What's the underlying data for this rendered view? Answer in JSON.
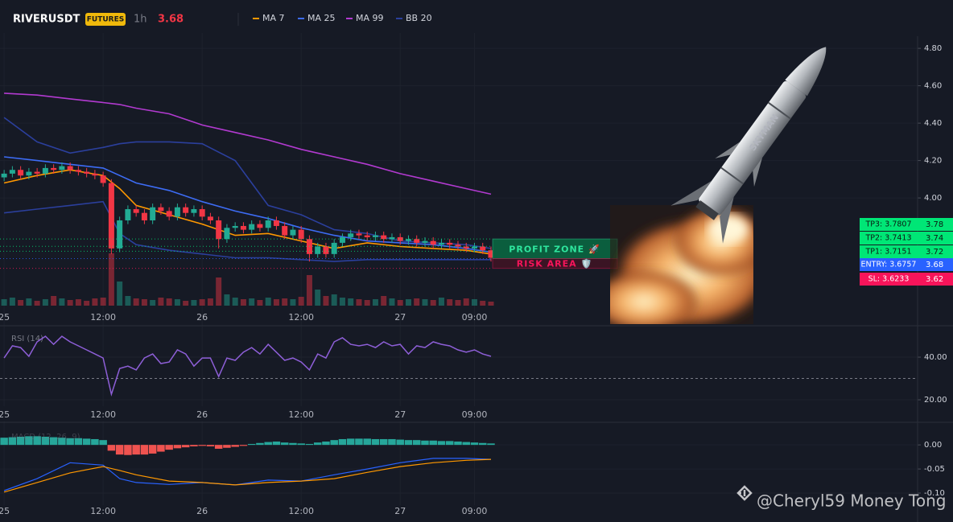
{
  "chart_data": [
    {
      "type": "candlestick",
      "title": "RIVERUSDT",
      "badge": "FUTURES",
      "interval": "1h",
      "last_price": 3.68,
      "x": [
        0,
        1,
        2,
        3,
        4,
        5,
        6,
        7,
        8,
        9,
        10,
        11,
        12,
        13,
        14,
        15,
        16,
        17,
        18,
        19,
        20,
        21,
        22,
        23,
        24,
        25,
        26,
        27,
        28,
        29,
        30,
        31,
        32,
        33,
        34,
        35,
        36,
        37,
        38,
        39,
        40,
        41,
        42,
        43,
        44,
        45,
        46,
        47,
        48,
        49,
        50,
        51,
        52,
        53,
        54,
        55,
        56,
        57,
        58,
        59
      ],
      "xlim": [
        -0.5,
        110.7
      ],
      "xticks": [
        {
          "value": 0,
          "label": "25"
        },
        {
          "value": 12,
          "label": "12:00"
        },
        {
          "value": 24,
          "label": "26"
        },
        {
          "value": 36,
          "label": "12:00"
        },
        {
          "value": 48,
          "label": "27"
        },
        {
          "value": 57,
          "label": "09:00"
        }
      ],
      "ylim": [
        3.338,
        4.865
      ],
      "yticks": [
        {
          "value": 4.8,
          "label": "4.80"
        },
        {
          "value": 4.6,
          "label": "4.60"
        },
        {
          "value": 4.4,
          "label": "4.40"
        },
        {
          "value": 4.2,
          "label": "4.20"
        },
        {
          "value": 4.0,
          "label": "4.00"
        }
      ],
      "open": [
        4.11,
        4.13,
        4.15,
        4.12,
        4.14,
        4.13,
        4.16,
        4.15,
        4.17,
        4.15,
        4.14,
        4.13,
        4.12,
        4.08,
        3.73,
        3.88,
        3.94,
        3.92,
        3.88,
        3.95,
        3.93,
        3.9,
        3.95,
        3.92,
        3.94,
        3.9,
        3.88,
        3.78,
        3.84,
        3.85,
        3.83,
        3.86,
        3.84,
        3.88,
        3.85,
        3.8,
        3.83,
        3.78,
        3.7,
        3.74,
        3.7,
        3.76,
        3.79,
        3.81,
        3.8,
        3.79,
        3.8,
        3.78,
        3.79,
        3.77,
        3.78,
        3.76,
        3.77,
        3.75,
        3.76,
        3.75,
        3.74,
        3.73,
        3.74,
        3.72
      ],
      "high": [
        4.15,
        4.17,
        4.17,
        4.16,
        4.16,
        4.18,
        4.18,
        4.19,
        4.19,
        4.17,
        4.16,
        4.15,
        4.14,
        4.1,
        3.9,
        3.96,
        3.96,
        3.94,
        3.97,
        3.97,
        3.95,
        3.97,
        3.97,
        3.96,
        3.96,
        3.92,
        3.9,
        3.86,
        3.87,
        3.87,
        3.88,
        3.88,
        3.9,
        3.9,
        3.87,
        3.85,
        3.85,
        3.8,
        3.76,
        3.76,
        3.78,
        3.81,
        3.83,
        3.83,
        3.82,
        3.82,
        3.82,
        3.81,
        3.81,
        3.8,
        3.8,
        3.79,
        3.79,
        3.78,
        3.78,
        3.77,
        3.76,
        3.76,
        3.76,
        3.74
      ],
      "low": [
        4.09,
        4.11,
        4.1,
        4.1,
        4.11,
        4.11,
        4.13,
        4.13,
        4.13,
        4.12,
        4.11,
        4.1,
        4.06,
        3.7,
        3.71,
        3.86,
        3.9,
        3.86,
        3.86,
        3.91,
        3.88,
        3.88,
        3.9,
        3.9,
        3.88,
        3.86,
        3.73,
        3.76,
        3.82,
        3.81,
        3.81,
        3.82,
        3.82,
        3.83,
        3.78,
        3.78,
        3.76,
        3.66,
        3.68,
        3.68,
        3.68,
        3.74,
        3.77,
        3.78,
        3.77,
        3.77,
        3.76,
        3.76,
        3.75,
        3.75,
        3.74,
        3.74,
        3.73,
        3.73,
        3.73,
        3.72,
        3.71,
        3.71,
        3.7,
        3.66
      ],
      "close": [
        4.13,
        4.15,
        4.12,
        4.14,
        4.13,
        4.16,
        4.15,
        4.17,
        4.15,
        4.14,
        4.13,
        4.12,
        4.08,
        3.73,
        3.88,
        3.94,
        3.92,
        3.88,
        3.95,
        3.93,
        3.9,
        3.95,
        3.92,
        3.94,
        3.9,
        3.88,
        3.78,
        3.84,
        3.85,
        3.83,
        3.86,
        3.84,
        3.88,
        3.85,
        3.8,
        3.83,
        3.78,
        3.7,
        3.74,
        3.7,
        3.76,
        3.79,
        3.81,
        3.8,
        3.79,
        3.8,
        3.78,
        3.79,
        3.77,
        3.78,
        3.76,
        3.77,
        3.75,
        3.76,
        3.75,
        3.74,
        3.73,
        3.74,
        3.72,
        3.68
      ],
      "volume": [
        8,
        10,
        7,
        9,
        6,
        8,
        12,
        9,
        7,
        8,
        6,
        9,
        10,
        65,
        30,
        12,
        9,
        8,
        7,
        10,
        9,
        8,
        6,
        7,
        8,
        9,
        35,
        14,
        10,
        8,
        9,
        7,
        10,
        8,
        9,
        8,
        11,
        38,
        20,
        12,
        14,
        10,
        9,
        8,
        7,
        8,
        12,
        9,
        7,
        8,
        9,
        8,
        7,
        10,
        8,
        7,
        9,
        8,
        6,
        5
      ],
      "volume_lim": [
        0,
        100
      ],
      "up_color": "#22ab94",
      "down_color": "#f23645",
      "series": [
        {
          "name": "MA 7",
          "color": "#ff9800",
          "x": [
            0,
            4,
            8,
            12,
            14,
            16,
            20,
            24,
            28,
            32,
            36,
            40,
            44,
            48,
            52,
            56,
            59
          ],
          "values": [
            4.08,
            4.12,
            4.15,
            4.12,
            4.05,
            3.96,
            3.91,
            3.86,
            3.8,
            3.81,
            3.77,
            3.73,
            3.76,
            3.74,
            3.73,
            3.72,
            3.7
          ]
        },
        {
          "name": "MA 25",
          "color": "#3d6cf5",
          "x": [
            0,
            4,
            8,
            12,
            14,
            16,
            20,
            24,
            28,
            32,
            36,
            40,
            44,
            48,
            52,
            56,
            59
          ],
          "values": [
            4.22,
            4.2,
            4.18,
            4.16,
            4.12,
            4.08,
            4.04,
            3.98,
            3.93,
            3.89,
            3.84,
            3.8,
            3.77,
            3.76,
            3.75,
            3.73,
            3.71
          ]
        },
        {
          "name": "MA 99",
          "color": "#b23ad0",
          "x": [
            0,
            4,
            8,
            12,
            14,
            16,
            20,
            24,
            28,
            32,
            36,
            40,
            44,
            48,
            52,
            56,
            59
          ],
          "values": [
            4.56,
            4.55,
            4.53,
            4.51,
            4.5,
            4.48,
            4.45,
            4.39,
            4.35,
            4.31,
            4.26,
            4.22,
            4.18,
            4.13,
            4.09,
            4.05,
            4.02
          ]
        },
        {
          "name": "BB 20",
          "color": "#2b3f9c",
          "x": [
            0,
            4,
            8,
            12,
            14,
            16,
            20,
            24,
            28,
            32,
            36,
            40,
            44,
            48,
            52,
            56,
            59
          ],
          "values": [
            4.43,
            4.3,
            4.24,
            4.27,
            4.29,
            4.3,
            4.3,
            4.29,
            4.2,
            3.96,
            3.91,
            3.83,
            3.81,
            3.77,
            3.76,
            3.75,
            3.73
          ],
          "lower": [
            3.92,
            3.94,
            3.96,
            3.98,
            3.81,
            3.75,
            3.72,
            3.7,
            3.68,
            3.68,
            3.67,
            3.66,
            3.67,
            3.67,
            3.67,
            3.67,
            3.67
          ]
        }
      ],
      "levels": [
        {
          "value": 3.7807,
          "label": "TP3: 3.7807",
          "tag": "3.78",
          "color": "#00e676"
        },
        {
          "value": 3.7413,
          "label": "TP2: 3.7413",
          "tag": "3.74",
          "color": "#00e676"
        },
        {
          "value": 3.7151,
          "label": "TP1: 3.7151",
          "tag": "3.72",
          "color": "#00e676"
        },
        {
          "value": 3.6757,
          "label": "ENTRY: 3.6757",
          "tag": "3.68",
          "color": "#2962ff"
        },
        {
          "value": 3.6233,
          "label": "SL: 3.6233",
          "tag": "3.62",
          "color": "#f7145a"
        }
      ],
      "zones": [
        {
          "label": "PROFIT ZONE 🚀",
          "from": 3.6757,
          "to": 3.7807,
          "color": "#0b5e3e",
          "text_color": "#2ee59d"
        },
        {
          "label": "RISK AREA 🛡️",
          "from": 3.6233,
          "to": 3.6757,
          "color": "#3a1424",
          "text_color": "#f7145a"
        }
      ],
      "watermark": "@Cheryl59 Money Tong"
    },
    {
      "type": "line",
      "title": "RSI (14)",
      "x": [
        0,
        1,
        2,
        3,
        4,
        5,
        6,
        7,
        8,
        9,
        10,
        11,
        12,
        13,
        14,
        15,
        16,
        17,
        18,
        19,
        20,
        21,
        22,
        23,
        24,
        25,
        26,
        27,
        28,
        29,
        30,
        31,
        32,
        33,
        34,
        35,
        36,
        37,
        38,
        39,
        40,
        41,
        42,
        43,
        44,
        45,
        46,
        47,
        48,
        49,
        50,
        51,
        52,
        53,
        54,
        55,
        56,
        57,
        58,
        59
      ],
      "xlim": [
        -0.5,
        110.7
      ],
      "xticks": [
        {
          "value": 0,
          "label": "25"
        },
        {
          "value": 12,
          "label": "12:00"
        },
        {
          "value": 24,
          "label": "26"
        },
        {
          "value": 36,
          "label": "12:00"
        },
        {
          "value": 48,
          "label": "27"
        },
        {
          "value": 57,
          "label": "09:00"
        }
      ],
      "ylim": [
        17,
        53.6
      ],
      "yticks": [
        {
          "value": 40,
          "label": "40.00"
        },
        {
          "value": 20,
          "label": "20.00"
        }
      ],
      "level": 30,
      "series": [
        {
          "name": "RSI",
          "color": "#8e5fd8",
          "values": [
            39.6,
            45.3,
            44.5,
            40.4,
            47.2,
            49.8,
            46.0,
            49.8,
            47.2,
            45.3,
            43.4,
            41.5,
            39.6,
            22.6,
            34.7,
            35.8,
            34.0,
            39.6,
            41.5,
            37.0,
            37.7,
            43.4,
            41.5,
            35.8,
            39.6,
            39.6,
            30.9,
            39.6,
            38.5,
            42.3,
            44.5,
            41.5,
            46.0,
            42.3,
            38.5,
            39.6,
            37.7,
            34.0,
            41.5,
            39.6,
            47.2,
            49.1,
            46.0,
            45.3,
            46.0,
            44.5,
            47.2,
            45.3,
            46.0,
            41.5,
            45.3,
            44.5,
            47.2,
            46.0,
            45.3,
            43.4,
            42.3,
            43.4,
            41.5,
            40.4
          ]
        }
      ]
    },
    {
      "type": "macd",
      "title": "MACD (12, 26, 9)",
      "x": [
        0,
        1,
        2,
        3,
        4,
        5,
        6,
        7,
        8,
        9,
        10,
        11,
        12,
        13,
        14,
        15,
        16,
        17,
        18,
        19,
        20,
        21,
        22,
        23,
        24,
        25,
        26,
        27,
        28,
        29,
        30,
        31,
        32,
        33,
        34,
        35,
        36,
        37,
        38,
        39,
        40,
        41,
        42,
        43,
        44,
        45,
        46,
        47,
        48,
        49,
        50,
        51,
        52,
        53,
        54,
        55,
        56,
        57,
        58,
        59
      ],
      "xlim": [
        -0.5,
        110.7
      ],
      "xticks": [
        {
          "value": 0,
          "label": "25"
        },
        {
          "value": 12,
          "label": "12:00"
        },
        {
          "value": 24,
          "label": "26"
        },
        {
          "value": 36,
          "label": "12:00"
        },
        {
          "value": 48,
          "label": "27"
        },
        {
          "value": 57,
          "label": "09:00"
        }
      ],
      "ylim": [
        -0.125,
        0.042
      ],
      "yticks": [
        {
          "value": 0,
          "label": "0.00"
        },
        {
          "value": -0.05,
          "label": "-0.05"
        },
        {
          "value": -0.1,
          "label": "-0.10"
        }
      ],
      "histogram": [
        0.015,
        0.016,
        0.017,
        0.018,
        0.018,
        0.017,
        0.016,
        0.015,
        0.014,
        0.014,
        0.013,
        0.012,
        0.01,
        -0.012,
        -0.02,
        -0.021,
        -0.02,
        -0.02,
        -0.018,
        -0.014,
        -0.01,
        -0.007,
        -0.005,
        -0.003,
        -0.002,
        -0.003,
        -0.008,
        -0.006,
        -0.004,
        -0.002,
        0.002,
        0.004,
        0.006,
        0.007,
        0.005,
        0.004,
        0.003,
        0.002,
        0.005,
        0.007,
        0.01,
        0.012,
        0.013,
        0.013,
        0.013,
        0.012,
        0.012,
        0.012,
        0.011,
        0.01,
        0.01,
        0.009,
        0.009,
        0.008,
        0.008,
        0.007,
        0.006,
        0.005,
        0.004,
        0.003
      ],
      "pos_color": "#26a69a",
      "neg_color": "#ef5350",
      "series": [
        {
          "name": "MACD",
          "color": "#2962ff",
          "x": [
            0,
            4,
            8,
            12,
            14,
            16,
            20,
            24,
            28,
            32,
            36,
            40,
            44,
            48,
            52,
            56,
            59
          ],
          "values": [
            -0.095,
            -0.07,
            -0.037,
            -0.042,
            -0.07,
            -0.078,
            -0.082,
            -0.078,
            -0.083,
            -0.073,
            -0.075,
            -0.062,
            -0.05,
            -0.037,
            -0.028,
            -0.028,
            -0.03
          ]
        },
        {
          "name": "Signal",
          "color": "#ff9800",
          "x": [
            0,
            4,
            8,
            12,
            14,
            16,
            20,
            24,
            28,
            32,
            36,
            40,
            44,
            48,
            52,
            56,
            59
          ],
          "values": [
            -0.098,
            -0.078,
            -0.058,
            -0.045,
            -0.053,
            -0.062,
            -0.075,
            -0.078,
            -0.083,
            -0.078,
            -0.075,
            -0.07,
            -0.057,
            -0.045,
            -0.037,
            -0.032,
            -0.03
          ]
        }
      ]
    }
  ]
}
